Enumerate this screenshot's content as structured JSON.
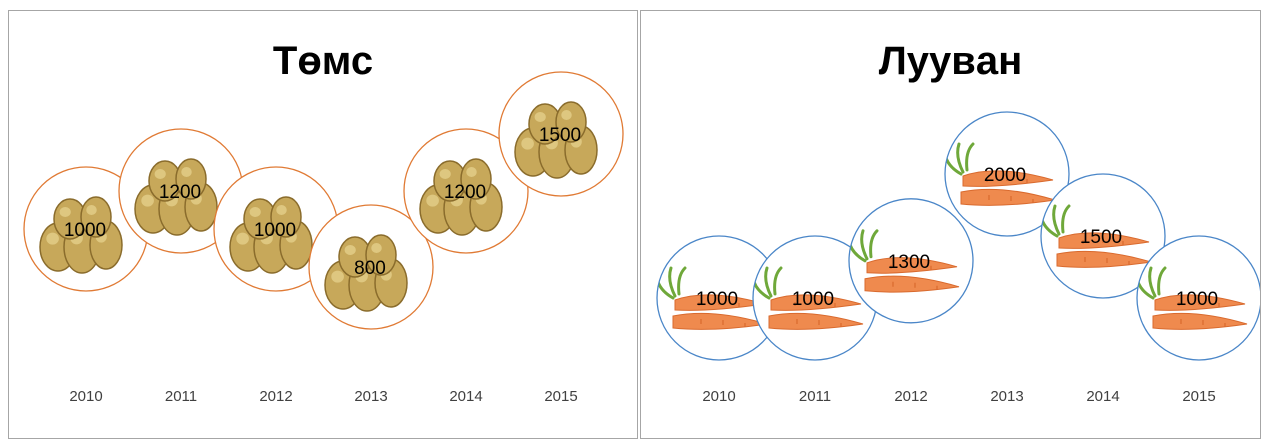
{
  "chart_data": [
    {
      "type": "scatter",
      "title": "Төмс",
      "categories": [
        "2010",
        "2011",
        "2012",
        "2013",
        "2014",
        "2015"
      ],
      "values": [
        1000,
        1200,
        1000,
        800,
        1200,
        1500
      ],
      "data_labels": [
        "1000",
        "1200",
        "1000",
        "800",
        "1200",
        "1500"
      ],
      "marker_border_color": "#e07a34",
      "marker_picture": "potato"
    },
    {
      "type": "scatter",
      "title": "Луувaн",
      "categories": [
        "2010",
        "2011",
        "2012",
        "2013",
        "2014",
        "2015"
      ],
      "values": [
        1000,
        1000,
        1300,
        2000,
        1500,
        1000
      ],
      "data_labels": [
        "1000",
        "1000",
        "1300",
        "2000",
        "1500",
        "1000"
      ],
      "marker_border_color": "#4a86c8",
      "marker_picture": "carrot"
    }
  ]
}
